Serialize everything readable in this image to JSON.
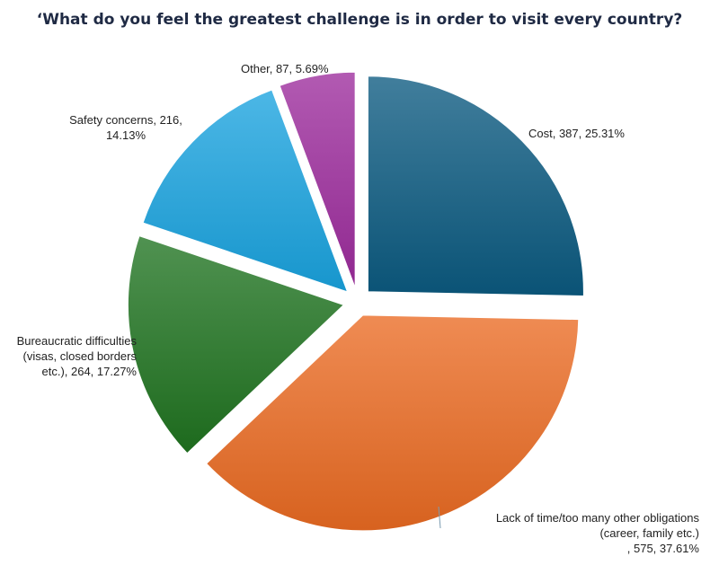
{
  "chart_data": {
    "type": "pie",
    "title": "‘What do you feel the greatest challenge is in order to visit every country?",
    "slices": [
      {
        "label": "Cost",
        "value": 387,
        "percent": 25.31,
        "color": "#0b5a80",
        "display_label": [
          "Cost, 387, 25.31%"
        ]
      },
      {
        "label": "Lack of time/too many other obligations (career, family etc.)",
        "value": 575,
        "percent": 37.61,
        "color": "#ea6a22",
        "display_label": [
          "Lack of time/too many other obligations",
          "(career, family etc.)",
          ", 575, 37.61%"
        ]
      },
      {
        "label": "Bureaucratic difficulties (visas, closed borders etc.)",
        "value": 264,
        "percent": 17.27,
        "color": "#1f7320",
        "display_label": [
          "Bureaucratic difficulties",
          "(visas, closed borders",
          "etc.), 264, 17.27%"
        ]
      },
      {
        "label": "Safety concerns",
        "value": 216,
        "percent": 14.13,
        "color": "#19a3df",
        "display_label": [
          "Safety concerns, 216,",
          "14.13%"
        ]
      },
      {
        "label": "Other",
        "value": 87,
        "percent": 5.69,
        "color": "#9c2c9c",
        "display_label": [
          "Other, 87, 5.69%"
        ]
      }
    ],
    "legend": "none",
    "data_labels": "outside"
  }
}
